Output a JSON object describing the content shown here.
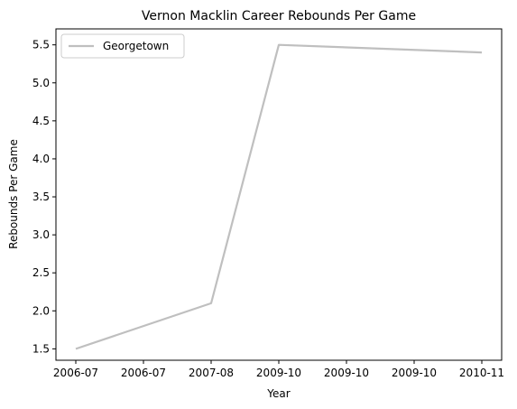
{
  "chart_data": {
    "type": "line",
    "title": "Vernon Macklin Career Rebounds Per Game",
    "xlabel": "Year",
    "ylabel": "Rebounds Per Game",
    "x_tick_labels": [
      "2006-07",
      "2006-07",
      "2007-08",
      "2009-10",
      "2009-10",
      "2009-10",
      "2010-11"
    ],
    "ylim": [
      1.35,
      5.71
    ],
    "y_ticks": [
      1.5,
      2.0,
      2.5,
      3.0,
      3.5,
      4.0,
      4.5,
      5.0,
      5.5
    ],
    "grid": false,
    "legend_position": "top-left",
    "series": [
      {
        "name": "Georgetown",
        "color": "#bfbfbf",
        "points": [
          {
            "x": "2006-07",
            "y": 1.5
          },
          {
            "x": "2007-08",
            "y": 2.1
          },
          {
            "x": "2009-10",
            "y": 5.5
          },
          {
            "x": "2010-11",
            "y": 5.4
          }
        ]
      }
    ]
  }
}
